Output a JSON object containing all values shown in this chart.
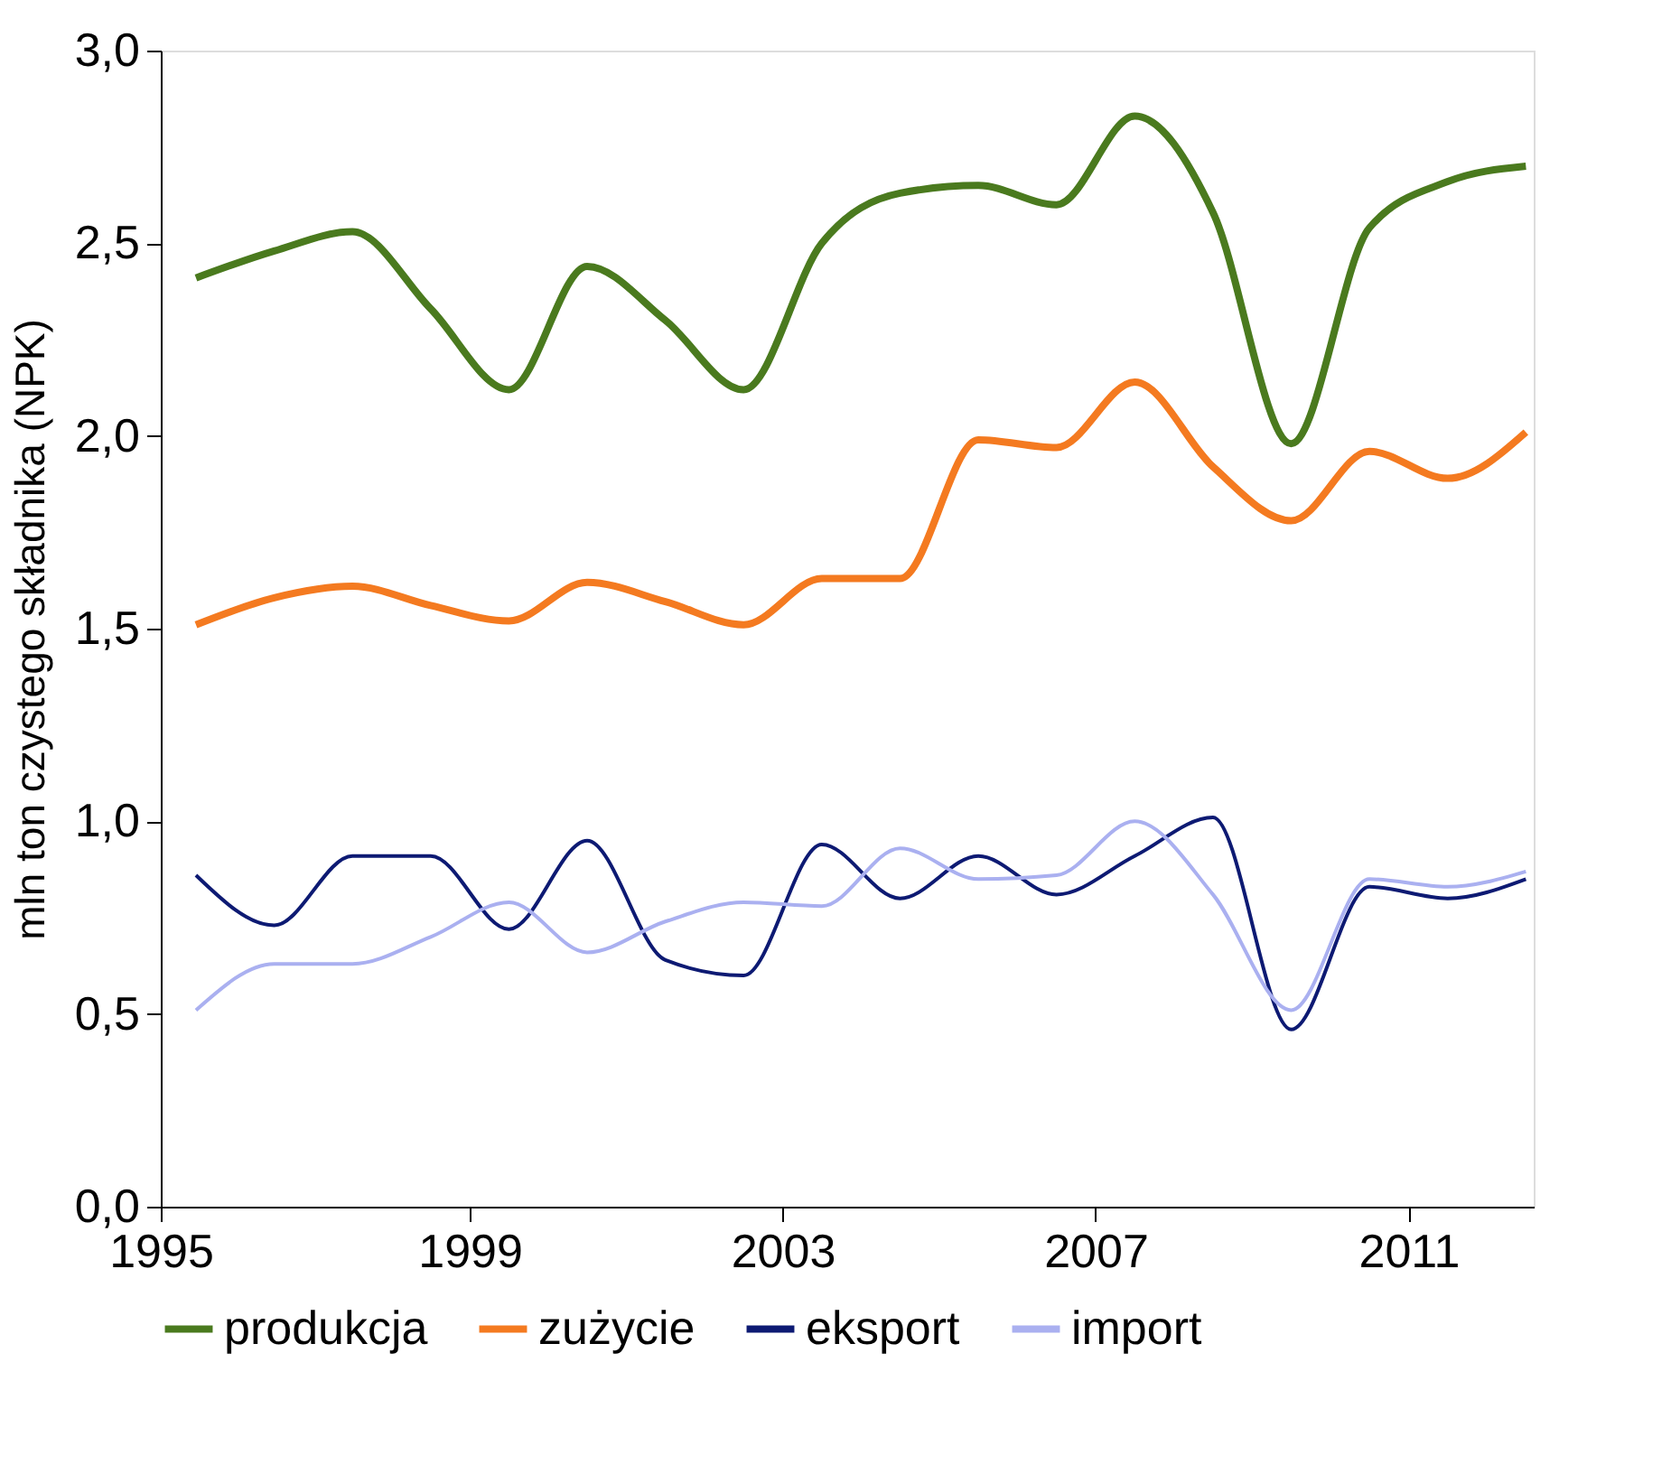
{
  "chart_data": {
    "type": "line",
    "ylabel": "mln ton czystego składnika (NPK)",
    "x": [
      1995,
      1996,
      1997,
      1998,
      1999,
      2000,
      2001,
      2002,
      2003,
      2004,
      2005,
      2006,
      2007,
      2008,
      2009,
      2010,
      2011,
      2012
    ],
    "xlim": [
      1994.55,
      2012.1
    ],
    "xticks": [
      {
        "value": 1994.55,
        "label": "1995"
      },
      {
        "value": 1998.5,
        "label": "1999"
      },
      {
        "value": 2002.5,
        "label": "2003"
      },
      {
        "value": 2006.5,
        "label": "2007"
      },
      {
        "value": 2010.5,
        "label": "2011"
      }
    ],
    "ylim": [
      0,
      3
    ],
    "yticks": [
      {
        "value": 0,
        "label": "0,0"
      },
      {
        "value": 0.5,
        "label": "0,5"
      },
      {
        "value": 1,
        "label": "1,0"
      },
      {
        "value": 1.5,
        "label": "1,5"
      },
      {
        "value": 2,
        "label": "2,0"
      },
      {
        "value": 2.5,
        "label": "2,5"
      },
      {
        "value": 3,
        "label": "3,0"
      }
    ],
    "series": [
      {
        "name": "produkcja",
        "color": "#4a7a1e",
        "values": [
          2.41,
          2.48,
          2.53,
          2.33,
          2.12,
          2.44,
          2.3,
          2.12,
          2.5,
          2.63,
          2.65,
          2.6,
          2.83,
          2.58,
          1.98,
          2.54,
          2.66,
          2.7
        ]
      },
      {
        "name": "zużycie",
        "color": "#f47a20",
        "values": [
          1.51,
          1.58,
          1.61,
          1.56,
          1.52,
          1.62,
          1.57,
          1.51,
          1.63,
          1.63,
          1.99,
          1.97,
          2.14,
          1.92,
          1.78,
          1.96,
          1.89,
          2.01
        ]
      },
      {
        "name": "eksport",
        "color": "#0d1a73",
        "values": [
          0.86,
          0.73,
          0.91,
          0.91,
          0.72,
          0.95,
          0.64,
          0.6,
          0.94,
          0.8,
          0.91,
          0.81,
          0.91,
          1.01,
          0.46,
          0.83,
          0.8,
          0.85
        ]
      },
      {
        "name": "import",
        "color": "#aab0f0",
        "values": [
          0.51,
          0.63,
          0.63,
          0.7,
          0.79,
          0.66,
          0.74,
          0.79,
          0.78,
          0.93,
          0.85,
          0.86,
          1.0,
          0.81,
          0.51,
          0.85,
          0.83,
          0.87
        ]
      }
    ],
    "grid": false,
    "legend": "bottom",
    "marker": "none",
    "line_style": "solid"
  }
}
